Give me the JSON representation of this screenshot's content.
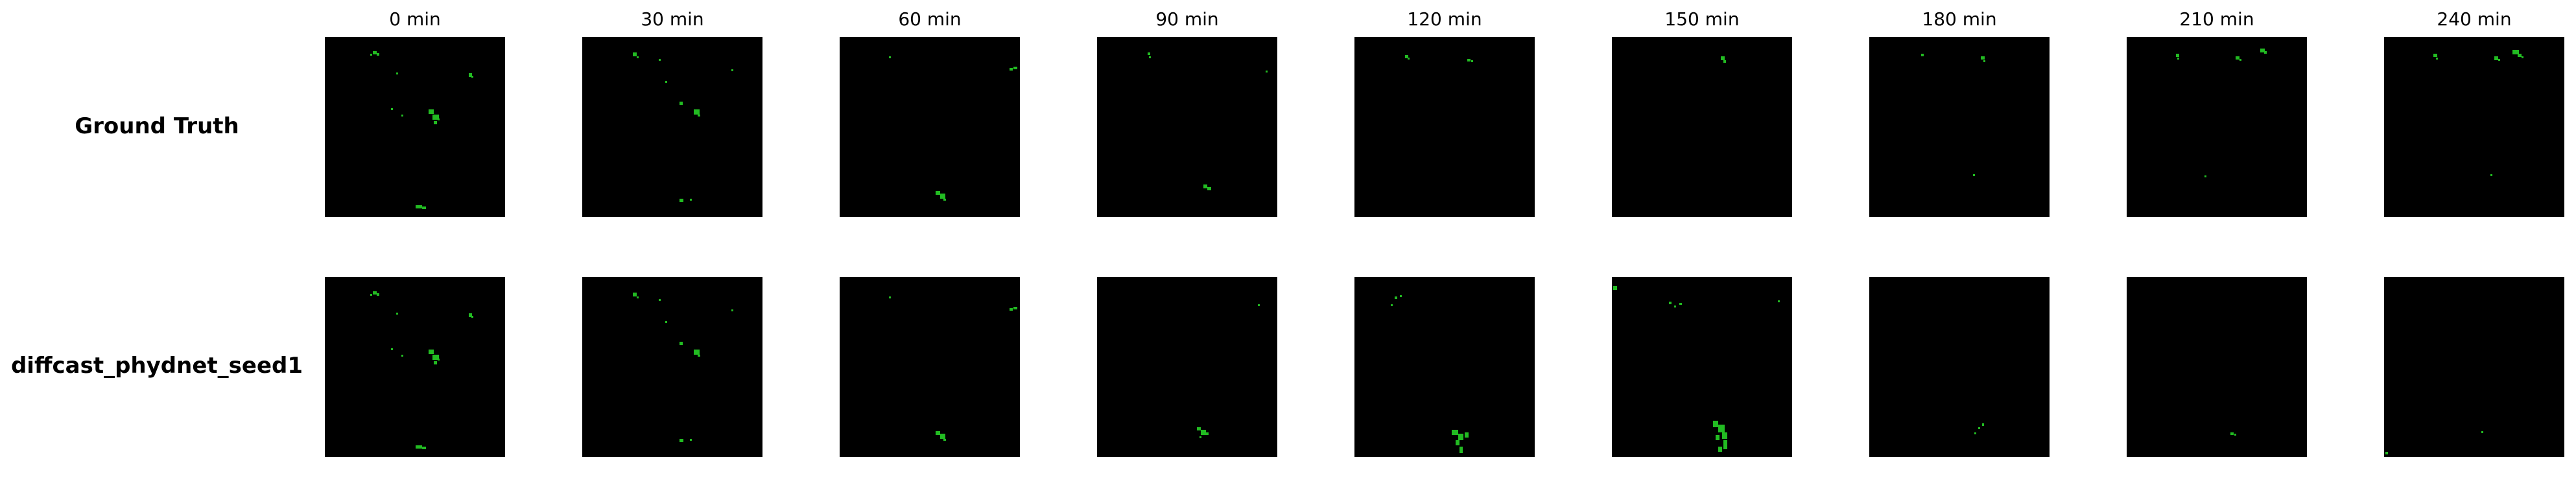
{
  "figure": {
    "time_labels": [
      "0 min",
      "30 min",
      "60 min",
      "90 min",
      "120 min",
      "150 min",
      "180 min",
      "210 min",
      "240 min"
    ],
    "rows": [
      {
        "label": "Ground Truth",
        "frames": [
          {
            "time": "0 min"
          },
          {
            "time": "30 min"
          },
          {
            "time": "60 min"
          },
          {
            "time": "90 min"
          },
          {
            "time": "120 min"
          },
          {
            "time": "150 min"
          },
          {
            "time": "180 min"
          },
          {
            "time": "210 min"
          },
          {
            "time": "240 min"
          }
        ]
      },
      {
        "label": "diffcast_phydnet_seed1",
        "frames": [
          {
            "time": "0 min"
          },
          {
            "time": "30 min"
          },
          {
            "time": "60 min"
          },
          {
            "time": "90 min"
          },
          {
            "time": "120 min"
          },
          {
            "time": "150 min"
          },
          {
            "time": "180 min"
          },
          {
            "time": "210 min"
          },
          {
            "time": "240 min"
          }
        ]
      }
    ],
    "colors": {
      "background": "#000000",
      "echo": "#22bb22",
      "echo_dark": "#127a12"
    }
  }
}
